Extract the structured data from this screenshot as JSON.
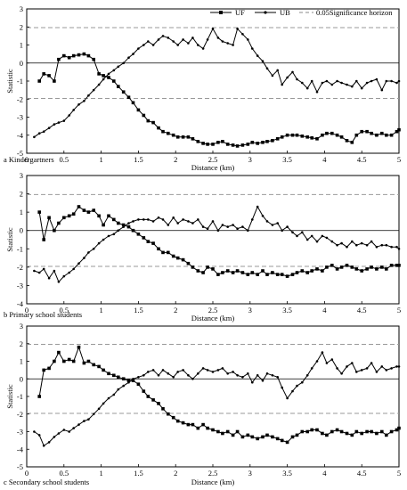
{
  "legend": {
    "uf_label": "UF",
    "ub_label": "UB",
    "sig_label": "0.05Significance horizon"
  },
  "chart_data": [
    {
      "type": "line",
      "caption": "a Kindergartners",
      "xlabel": "Distance (km)",
      "ylabel": "Statistic",
      "xlim": [
        0,
        5
      ],
      "ylim": [
        -5,
        3
      ],
      "xticks": [
        "0",
        "0.5",
        "1",
        "1.5",
        "2",
        "2.5",
        "3",
        "3.5",
        "4",
        "4.5",
        "5"
      ],
      "yticks": [
        "-5",
        "-4",
        "-3",
        "-2",
        "-1",
        "0",
        "1",
        "2",
        "3"
      ],
      "grid": false,
      "significance": [
        1.96,
        -1.96
      ],
      "x": [
        0.1,
        0.17,
        0.23,
        0.3,
        0.37,
        0.43,
        0.5,
        0.57,
        0.63,
        0.7,
        0.77,
        0.83,
        0.9,
        0.97,
        1.03,
        1.1,
        1.17,
        1.23,
        1.3,
        1.37,
        1.43,
        1.5,
        1.57,
        1.63,
        1.7,
        1.77,
        1.83,
        1.9,
        1.97,
        2.03,
        2.1,
        2.17,
        2.23,
        2.3,
        2.37,
        2.43,
        2.5,
        2.57,
        2.63,
        2.7,
        2.77,
        2.83,
        2.9,
        2.97,
        3.03,
        3.1,
        3.17,
        3.23,
        3.3,
        3.37,
        3.43,
        3.5,
        3.57,
        3.63,
        3.7,
        3.77,
        3.83,
        3.9,
        3.97,
        4.03,
        4.1,
        4.17,
        4.23,
        4.3,
        4.37,
        4.43,
        4.5,
        4.57,
        4.63,
        4.7,
        4.77,
        4.83,
        4.9,
        4.97,
        5.0
      ],
      "series": [
        {
          "name": "UF",
          "values": [
            null,
            -1.0,
            -0.6,
            -0.7,
            -1.0,
            0.2,
            0.4,
            0.3,
            0.4,
            0.45,
            0.5,
            0.4,
            0.2,
            -0.6,
            -0.7,
            -0.8,
            -1.0,
            -1.3,
            -1.6,
            -1.9,
            -2.2,
            -2.6,
            -2.9,
            -3.2,
            -3.3,
            -3.6,
            -3.8,
            -3.9,
            -4.0,
            -4.1,
            -4.1,
            -4.1,
            -4.2,
            -4.35,
            -4.45,
            -4.5,
            -4.5,
            -4.4,
            -4.35,
            -4.5,
            -4.55,
            -4.6,
            -4.55,
            -4.5,
            -4.4,
            -4.45,
            -4.4,
            -4.35,
            -4.3,
            -4.2,
            -4.1,
            -4.0,
            -4.0,
            -4.0,
            -4.05,
            -4.1,
            -4.15,
            -4.2,
            -4.0,
            -3.9,
            -3.9,
            -4.0,
            -4.1,
            -4.3,
            -4.4,
            -4.0,
            -3.8,
            -3.8,
            -3.9,
            -4.0,
            -3.9,
            -4.0,
            -4.0,
            -3.8,
            -3.7
          ]
        },
        {
          "name": "UB",
          "values": [
            -4.1,
            -3.9,
            -3.8,
            -3.6,
            -3.4,
            -3.3,
            -3.2,
            -2.9,
            -2.6,
            -2.3,
            -2.1,
            -1.8,
            -1.5,
            -1.2,
            -0.9,
            -0.6,
            -0.4,
            -0.2,
            0.0,
            0.3,
            0.5,
            0.8,
            1.0,
            1.2,
            1.0,
            1.3,
            1.5,
            1.4,
            1.2,
            1.0,
            1.3,
            1.1,
            1.4,
            1.0,
            0.8,
            1.3,
            1.9,
            1.4,
            1.2,
            1.1,
            1.0,
            1.9,
            1.6,
            1.3,
            0.8,
            0.4,
            0.1,
            -0.3,
            -0.7,
            -0.4,
            -1.2,
            -0.8,
            -0.5,
            -0.9,
            -1.1,
            -1.4,
            -1.0,
            -1.6,
            -1.1,
            -1.0,
            -1.2,
            -1.0,
            -1.1,
            -1.2,
            -1.3,
            -1.0,
            -1.4,
            -1.1,
            -1.0,
            -0.9,
            -1.5,
            -1.0,
            -1.0,
            -1.1,
            -1.0
          ]
        }
      ]
    },
    {
      "type": "line",
      "caption": "b Primary school students",
      "xlabel": "Distance (km)",
      "ylabel": "Statistic",
      "xlim": [
        0,
        5
      ],
      "ylim": [
        -4,
        3
      ],
      "xticks": [
        "0",
        "0.5",
        "1",
        "1.5",
        "2",
        "2.5",
        "3",
        "3.5",
        "4",
        "4.5",
        "5"
      ],
      "yticks": [
        "-4",
        "-3",
        "-2",
        "-1",
        "0",
        "1",
        "2",
        "3"
      ],
      "grid": false,
      "significance": [
        1.96,
        -1.96
      ],
      "x": [
        0.1,
        0.17,
        0.23,
        0.3,
        0.37,
        0.43,
        0.5,
        0.57,
        0.63,
        0.7,
        0.77,
        0.83,
        0.9,
        0.97,
        1.03,
        1.1,
        1.17,
        1.23,
        1.3,
        1.37,
        1.43,
        1.5,
        1.57,
        1.63,
        1.7,
        1.77,
        1.83,
        1.9,
        1.97,
        2.03,
        2.1,
        2.17,
        2.23,
        2.3,
        2.37,
        2.43,
        2.5,
        2.57,
        2.63,
        2.7,
        2.77,
        2.83,
        2.9,
        2.97,
        3.03,
        3.1,
        3.17,
        3.23,
        3.3,
        3.37,
        3.43,
        3.5,
        3.57,
        3.63,
        3.7,
        3.77,
        3.83,
        3.9,
        3.97,
        4.03,
        4.1,
        4.17,
        4.23,
        4.3,
        4.37,
        4.43,
        4.5,
        4.57,
        4.63,
        4.7,
        4.77,
        4.83,
        4.9,
        4.97,
        5.0
      ],
      "series": [
        {
          "name": "UF",
          "values": [
            null,
            1.0,
            -0.5,
            0.7,
            0.0,
            0.4,
            0.7,
            0.8,
            0.9,
            1.3,
            1.1,
            1.0,
            1.1,
            0.8,
            0.3,
            0.8,
            0.6,
            0.4,
            0.3,
            0.2,
            0.0,
            -0.2,
            -0.4,
            -0.6,
            -0.7,
            -1.0,
            -1.2,
            -1.2,
            -1.4,
            -1.5,
            -1.6,
            -1.8,
            -2.0,
            -2.2,
            -2.3,
            -2.0,
            -2.1,
            -2.4,
            -2.3,
            -2.2,
            -2.3,
            -2.2,
            -2.3,
            -2.4,
            -2.3,
            -2.4,
            -2.2,
            -2.4,
            -2.3,
            -2.4,
            -2.4,
            -2.5,
            -2.4,
            -2.3,
            -2.2,
            -2.3,
            -2.2,
            -2.1,
            -2.2,
            -2.0,
            -1.9,
            -2.1,
            -2.0,
            -1.9,
            -2.0,
            -2.1,
            -2.2,
            -2.1,
            -2.0,
            -2.1,
            -2.0,
            -2.1,
            -1.9,
            -1.9,
            -1.9
          ]
        },
        {
          "name": "UB",
          "values": [
            -2.2,
            -2.3,
            -2.1,
            -2.6,
            -2.2,
            -2.8,
            -2.5,
            -2.3,
            -2.1,
            -1.8,
            -1.5,
            -1.2,
            -1.0,
            -0.7,
            -0.5,
            -0.3,
            -0.2,
            0.0,
            0.2,
            0.4,
            0.5,
            0.6,
            0.6,
            0.6,
            0.5,
            0.7,
            0.6,
            0.3,
            0.7,
            0.4,
            0.6,
            0.5,
            0.4,
            0.6,
            0.2,
            0.1,
            0.5,
            0.0,
            0.3,
            0.2,
            0.3,
            0.1,
            0.2,
            0.0,
            0.6,
            1.3,
            0.8,
            0.5,
            0.3,
            0.4,
            0.0,
            0.2,
            -0.1,
            -0.3,
            -0.1,
            -0.5,
            -0.3,
            -0.6,
            -0.3,
            -0.4,
            -0.6,
            -0.8,
            -0.7,
            -0.9,
            -0.6,
            -0.8,
            -0.7,
            -0.8,
            -0.6,
            -0.9,
            -0.8,
            -0.8,
            -0.9,
            -0.9,
            -1.0
          ]
        }
      ]
    },
    {
      "type": "line",
      "caption": "c Secondary school students",
      "xlabel": "Distance (km)",
      "ylabel": "Statistic",
      "xlim": [
        0,
        5
      ],
      "ylim": [
        -5,
        3
      ],
      "xticks": [
        "0",
        "0.5",
        "1",
        "1.5",
        "2",
        "2.5",
        "3",
        "3.5",
        "4",
        "4.5",
        "5"
      ],
      "yticks": [
        "-5",
        "-4",
        "-3",
        "-2",
        "-1",
        "0",
        "1",
        "2",
        "3"
      ],
      "grid": false,
      "significance": [
        1.96,
        -1.96
      ],
      "x": [
        0.1,
        0.17,
        0.23,
        0.3,
        0.37,
        0.43,
        0.5,
        0.57,
        0.63,
        0.7,
        0.77,
        0.83,
        0.9,
        0.97,
        1.03,
        1.1,
        1.17,
        1.23,
        1.3,
        1.37,
        1.43,
        1.5,
        1.57,
        1.63,
        1.7,
        1.77,
        1.83,
        1.9,
        1.97,
        2.03,
        2.1,
        2.17,
        2.23,
        2.3,
        2.37,
        2.43,
        2.5,
        2.57,
        2.63,
        2.7,
        2.77,
        2.83,
        2.9,
        2.97,
        3.03,
        3.1,
        3.17,
        3.23,
        3.3,
        3.37,
        3.43,
        3.5,
        3.57,
        3.63,
        3.7,
        3.77,
        3.83,
        3.9,
        3.97,
        4.03,
        4.1,
        4.17,
        4.23,
        4.3,
        4.37,
        4.43,
        4.5,
        4.57,
        4.63,
        4.7,
        4.77,
        4.83,
        4.9,
        4.97,
        5.0
      ],
      "series": [
        {
          "name": "UF",
          "values": [
            null,
            -1.0,
            0.5,
            0.6,
            1.0,
            1.5,
            1.0,
            1.1,
            1.0,
            1.8,
            0.9,
            1.0,
            0.8,
            0.7,
            0.5,
            0.3,
            0.2,
            0.1,
            0.0,
            -0.1,
            -0.1,
            -0.3,
            -0.7,
            -1.0,
            -1.2,
            -1.4,
            -1.7,
            -2.0,
            -2.2,
            -2.4,
            -2.5,
            -2.6,
            -2.6,
            -2.8,
            -2.6,
            -2.8,
            -2.9,
            -3.0,
            -3.1,
            -3.0,
            -3.2,
            -3.0,
            -3.3,
            -3.2,
            -3.3,
            -3.4,
            -3.3,
            -3.2,
            -3.3,
            -3.4,
            -3.5,
            -3.6,
            -3.3,
            -3.2,
            -3.0,
            -3.0,
            -2.9,
            -2.9,
            -3.1,
            -3.2,
            -3.0,
            -2.9,
            -3.0,
            -3.1,
            -3.2,
            -3.0,
            -3.1,
            -3.0,
            -3.0,
            -3.1,
            -3.0,
            -3.2,
            -3.0,
            -2.9,
            -2.8
          ]
        },
        {
          "name": "UB",
          "values": [
            -3.0,
            -3.2,
            -3.8,
            -3.6,
            -3.3,
            -3.1,
            -2.9,
            -3.0,
            -2.8,
            -2.6,
            -2.4,
            -2.3,
            -2.0,
            -1.7,
            -1.4,
            -1.1,
            -0.9,
            -0.6,
            -0.4,
            -0.2,
            0.0,
            0.1,
            0.2,
            0.4,
            0.5,
            0.2,
            0.5,
            0.3,
            0.1,
            0.4,
            0.5,
            0.2,
            0.0,
            0.3,
            0.6,
            0.5,
            0.4,
            0.5,
            0.6,
            0.3,
            0.4,
            0.2,
            0.1,
            0.3,
            -0.2,
            0.2,
            -0.1,
            0.3,
            0.2,
            0.1,
            -0.5,
            -1.1,
            -0.7,
            -0.4,
            -0.2,
            0.2,
            0.6,
            1.0,
            1.5,
            0.9,
            1.1,
            0.6,
            0.3,
            0.7,
            0.9,
            0.4,
            0.5,
            0.6,
            0.9,
            0.4,
            0.7,
            0.5,
            0.6,
            0.7,
            0.7
          ]
        }
      ]
    }
  ]
}
